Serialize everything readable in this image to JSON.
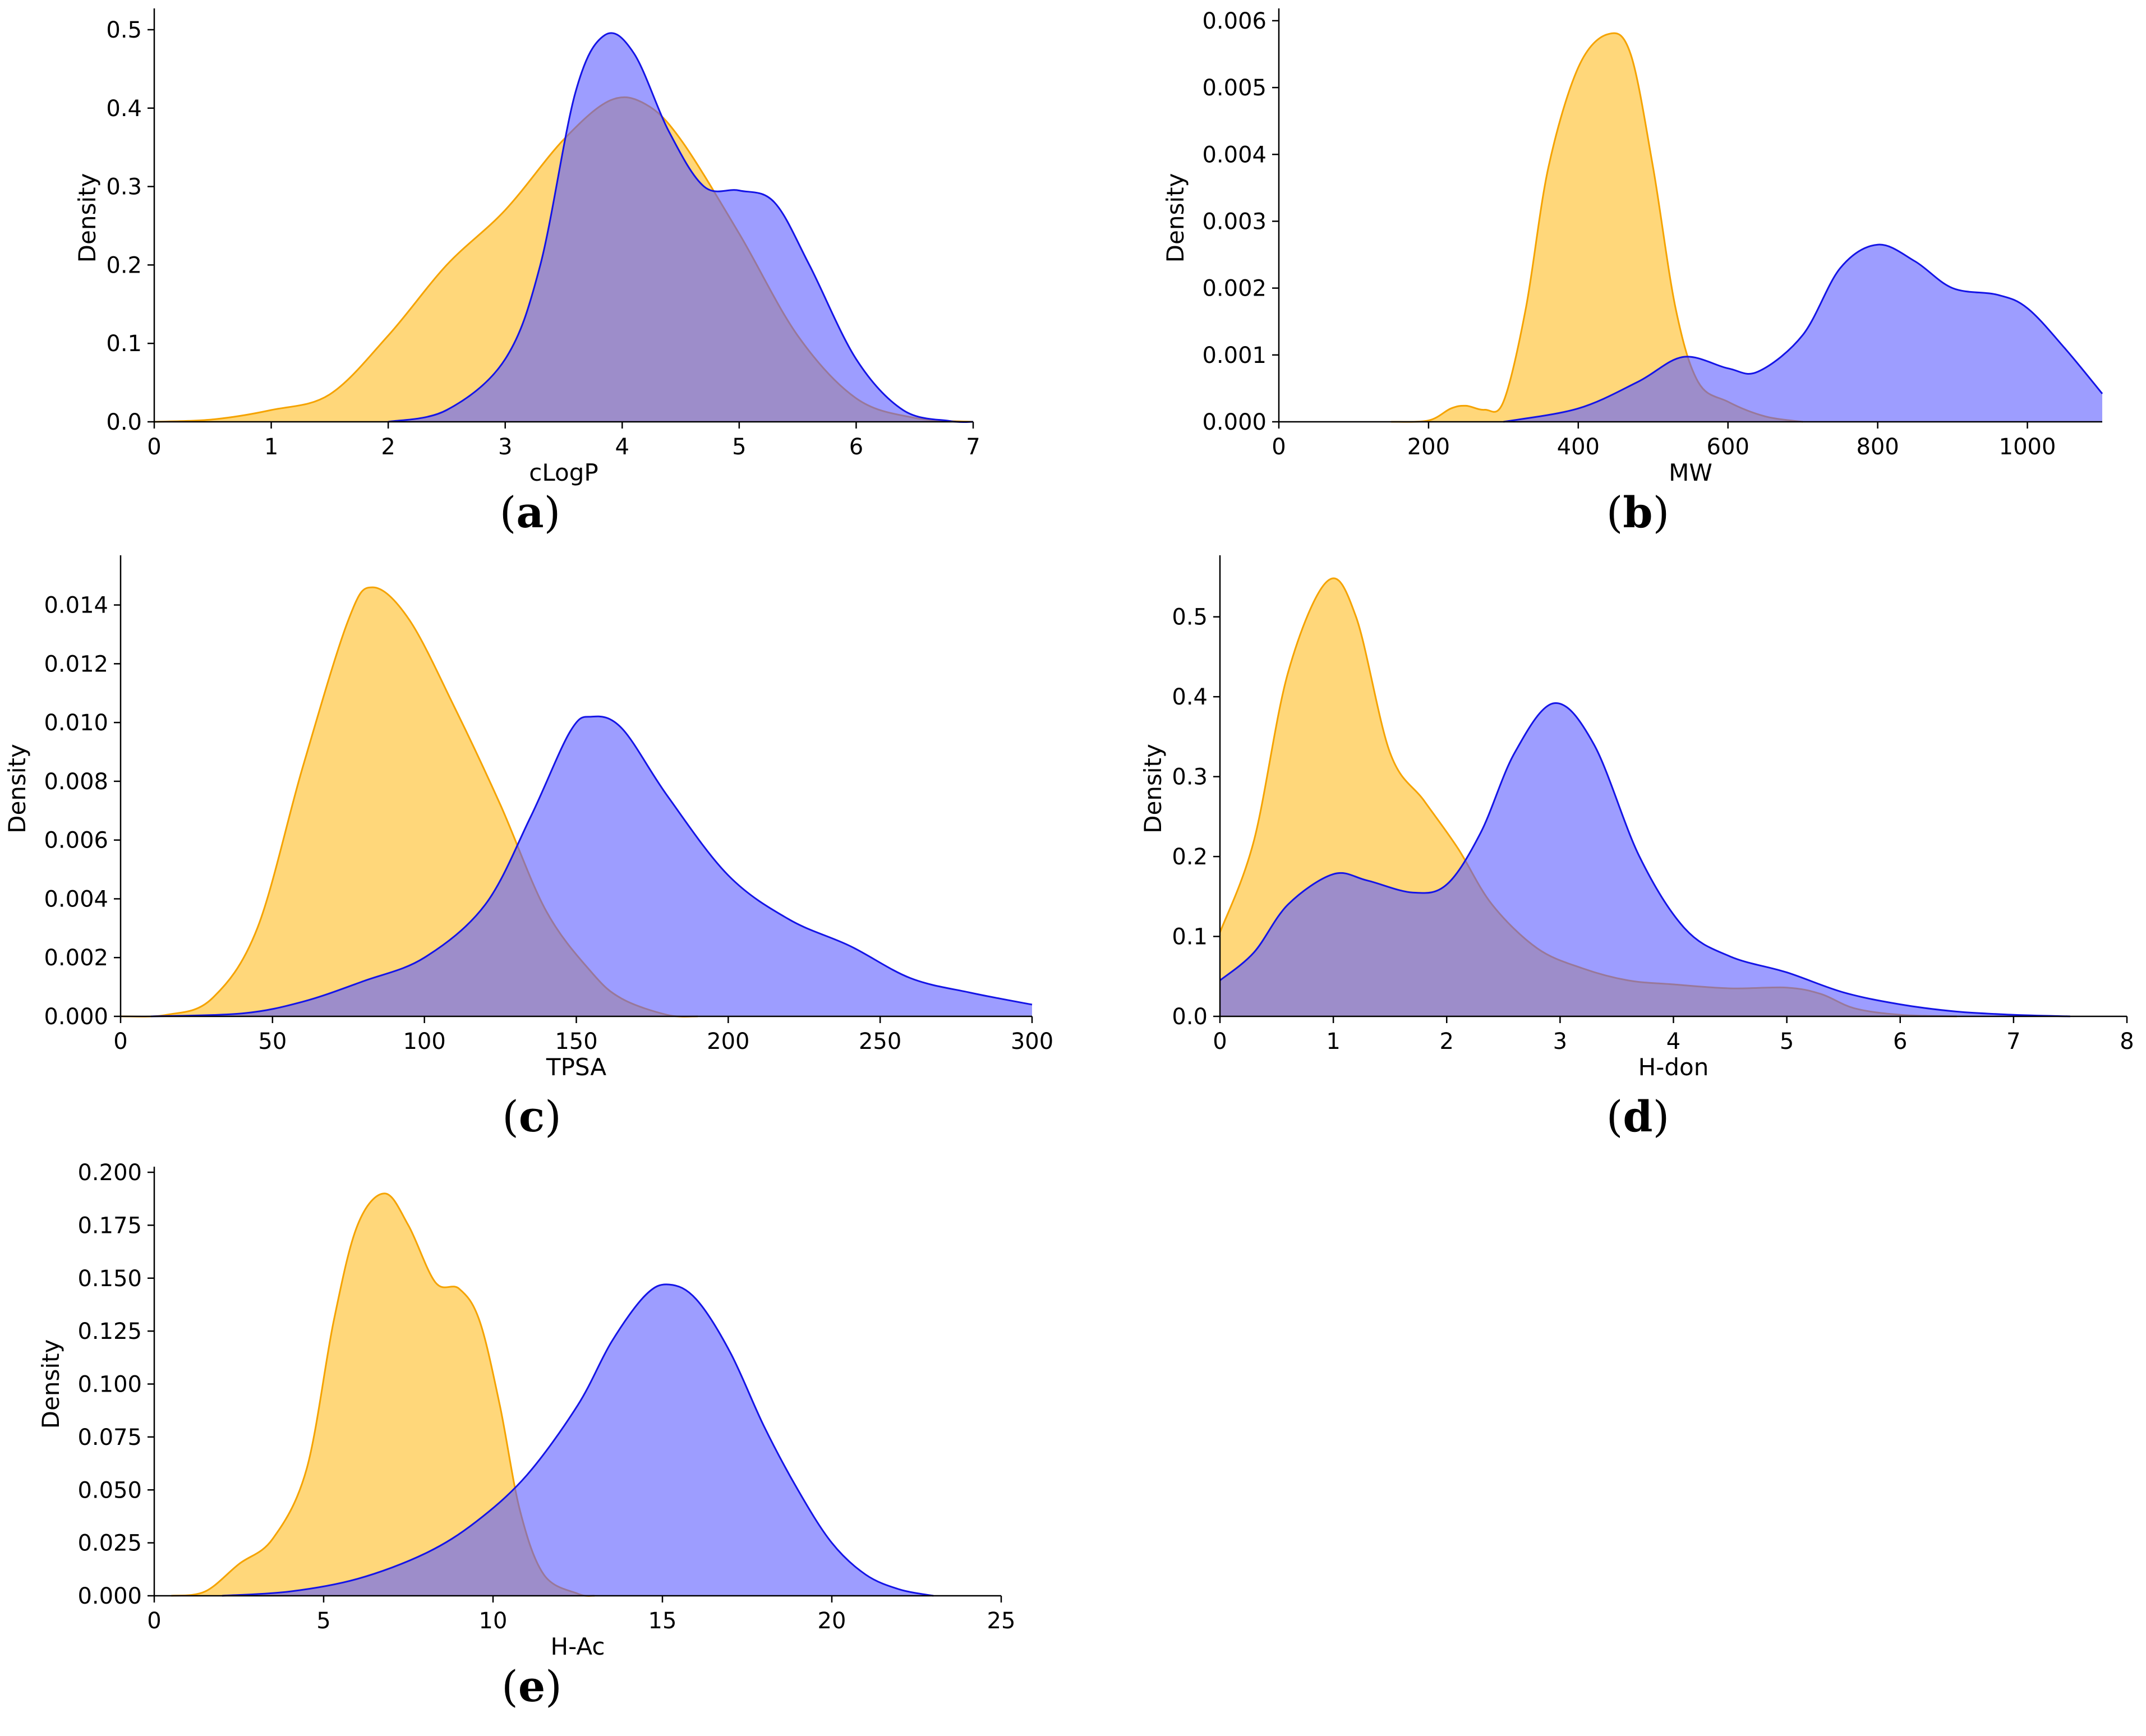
{
  "colors": {
    "orange_fill": "#FFC94D",
    "orange_line": "#F5A300",
    "blue_fill": "#5C5CFF",
    "blue_line": "#1414E6"
  },
  "chart_data": [
    {
      "type": "area",
      "panel": "a",
      "xlabel": "cLogP",
      "ylabel": "Density",
      "xlim": [
        0,
        7
      ],
      "ylim": [
        0,
        0.52
      ],
      "xticks": [
        "0",
        "1",
        "2",
        "3",
        "4",
        "5",
        "6",
        "7"
      ],
      "yticks": [
        "0.0",
        "0.1",
        "0.2",
        "0.3",
        "0.4",
        "0.5"
      ],
      "series": [
        {
          "name": "orange",
          "points": [
            [
              0,
              0
            ],
            [
              0.5,
              0.003
            ],
            [
              1,
              0.015
            ],
            [
              1.5,
              0.035
            ],
            [
              2,
              0.11
            ],
            [
              2.5,
              0.2
            ],
            [
              3,
              0.27
            ],
            [
              3.5,
              0.36
            ],
            [
              3.9,
              0.41
            ],
            [
              4.2,
              0.405
            ],
            [
              4.5,
              0.36
            ],
            [
              5,
              0.24
            ],
            [
              5.5,
              0.11
            ],
            [
              6,
              0.03
            ],
            [
              6.5,
              0.005
            ],
            [
              7,
              0
            ]
          ]
        },
        {
          "name": "blue",
          "points": [
            [
              2,
              0
            ],
            [
              2.5,
              0.015
            ],
            [
              3,
              0.08
            ],
            [
              3.3,
              0.2
            ],
            [
              3.6,
              0.42
            ],
            [
              3.85,
              0.493
            ],
            [
              4.1,
              0.47
            ],
            [
              4.4,
              0.37
            ],
            [
              4.7,
              0.3
            ],
            [
              5,
              0.295
            ],
            [
              5.3,
              0.28
            ],
            [
              5.6,
              0.2
            ],
            [
              6,
              0.08
            ],
            [
              6.4,
              0.015
            ],
            [
              6.8,
              0.001
            ],
            [
              7,
              0
            ]
          ]
        }
      ]
    },
    {
      "type": "area",
      "panel": "b",
      "xlabel": "MW",
      "ylabel": "Density",
      "xlim": [
        0,
        1100
      ],
      "ylim": [
        0,
        0.0061
      ],
      "xticks": [
        "0",
        "200",
        "400",
        "600",
        "800",
        "1000"
      ],
      "yticks": [
        "0.000",
        "0.001",
        "0.002",
        "0.003",
        "0.004",
        "0.005",
        "0.006"
      ],
      "series": [
        {
          "name": "orange",
          "points": [
            [
              150,
              0
            ],
            [
              200,
              2e-05
            ],
            [
              230,
              0.0002
            ],
            [
              250,
              0.00024
            ],
            [
              275,
              0.00018
            ],
            [
              300,
              0.0003
            ],
            [
              330,
              0.0017
            ],
            [
              360,
              0.0038
            ],
            [
              400,
              0.0053
            ],
            [
              440,
              0.0058
            ],
            [
              470,
              0.0055
            ],
            [
              500,
              0.0038
            ],
            [
              530,
              0.0017
            ],
            [
              560,
              0.0006
            ],
            [
              600,
              0.0003
            ],
            [
              650,
              8e-05
            ],
            [
              700,
              0
            ]
          ]
        },
        {
          "name": "blue",
          "points": [
            [
              300,
              0
            ],
            [
              400,
              0.0002
            ],
            [
              480,
              0.0006
            ],
            [
              540,
              0.00097
            ],
            [
              600,
              0.0008
            ],
            [
              640,
              0.00075
            ],
            [
              700,
              0.0013
            ],
            [
              750,
              0.0023
            ],
            [
              800,
              0.00265
            ],
            [
              850,
              0.0024
            ],
            [
              900,
              0.002
            ],
            [
              960,
              0.0019
            ],
            [
              1000,
              0.0017
            ],
            [
              1050,
              0.0011
            ],
            [
              1100,
              0.00042
            ]
          ]
        }
      ]
    },
    {
      "type": "area",
      "panel": "c",
      "xlabel": "TPSA",
      "ylabel": "Density",
      "xlim": [
        0,
        300
      ],
      "ylim": [
        0,
        0.0155
      ],
      "xticks": [
        "0",
        "50",
        "100",
        "150",
        "200",
        "250",
        "300"
      ],
      "yticks": [
        "0.000",
        "0.002",
        "0.004",
        "0.006",
        "0.008",
        "0.010",
        "0.012",
        "0.014"
      ],
      "series": [
        {
          "name": "orange",
          "points": [
            [
              0,
              0
            ],
            [
              15,
              5e-05
            ],
            [
              30,
              0.0006
            ],
            [
              45,
              0.003
            ],
            [
              60,
              0.0085
            ],
            [
              75,
              0.0135
            ],
            [
              83,
              0.0146
            ],
            [
              95,
              0.0135
            ],
            [
              110,
              0.0105
            ],
            [
              125,
              0.0072
            ],
            [
              140,
              0.0036
            ],
            [
              155,
              0.0015
            ],
            [
              165,
              0.0006
            ],
            [
              180,
              5e-05
            ],
            [
              190,
              0
            ]
          ]
        },
        {
          "name": "blue",
          "points": [
            [
              10,
              0
            ],
            [
              40,
              0.0001
            ],
            [
              60,
              0.0005
            ],
            [
              80,
              0.0012
            ],
            [
              100,
              0.002
            ],
            [
              120,
              0.0038
            ],
            [
              135,
              0.0068
            ],
            [
              148,
              0.0097
            ],
            [
              155,
              0.0102
            ],
            [
              165,
              0.0098
            ],
            [
              180,
              0.0075
            ],
            [
              200,
              0.0048
            ],
            [
              220,
              0.0033
            ],
            [
              240,
              0.0024
            ],
            [
              260,
              0.0013
            ],
            [
              280,
              0.0008
            ],
            [
              300,
              0.0004
            ]
          ]
        }
      ]
    },
    {
      "type": "area",
      "panel": "d",
      "xlabel": "H-don",
      "ylabel": "Density",
      "xlim": [
        0,
        8
      ],
      "ylim": [
        0,
        0.57
      ],
      "xticks": [
        "0",
        "1",
        "2",
        "3",
        "4",
        "5",
        "6",
        "7",
        "8"
      ],
      "yticks": [
        "0.0",
        "0.1",
        "0.2",
        "0.3",
        "0.4",
        "0.5"
      ],
      "series": [
        {
          "name": "orange",
          "points": [
            [
              0,
              0.105
            ],
            [
              0.3,
              0.22
            ],
            [
              0.6,
              0.43
            ],
            [
              0.95,
              0.545
            ],
            [
              1.2,
              0.5
            ],
            [
              1.5,
              0.33
            ],
            [
              1.8,
              0.27
            ],
            [
              2.1,
              0.21
            ],
            [
              2.4,
              0.14
            ],
            [
              2.8,
              0.085
            ],
            [
              3.2,
              0.06
            ],
            [
              3.6,
              0.045
            ],
            [
              4,
              0.04
            ],
            [
              4.5,
              0.035
            ],
            [
              5,
              0.036
            ],
            [
              5.3,
              0.028
            ],
            [
              5.6,
              0.01
            ],
            [
              6,
              0.002
            ],
            [
              6.5,
              0
            ]
          ]
        },
        {
          "name": "blue",
          "points": [
            [
              0,
              0.045
            ],
            [
              0.3,
              0.08
            ],
            [
              0.6,
              0.14
            ],
            [
              1,
              0.178
            ],
            [
              1.3,
              0.17
            ],
            [
              1.7,
              0.155
            ],
            [
              2,
              0.165
            ],
            [
              2.3,
              0.23
            ],
            [
              2.6,
              0.33
            ],
            [
              2.95,
              0.392
            ],
            [
              3.3,
              0.34
            ],
            [
              3.7,
              0.2
            ],
            [
              4.1,
              0.11
            ],
            [
              4.5,
              0.075
            ],
            [
              5,
              0.055
            ],
            [
              5.5,
              0.03
            ],
            [
              6,
              0.015
            ],
            [
              6.5,
              0.006
            ],
            [
              7,
              0.002
            ],
            [
              7.5,
              0
            ]
          ]
        }
      ]
    },
    {
      "type": "area",
      "panel": "e",
      "xlabel": "H-Ac",
      "ylabel": "Density",
      "xlim": [
        0,
        25
      ],
      "ylim": [
        0,
        0.2
      ],
      "xticks": [
        "0",
        "5",
        "10",
        "15",
        "20",
        "25"
      ],
      "yticks": [
        "0.000",
        "0.025",
        "0.050",
        "0.075",
        "0.100",
        "0.125",
        "0.150",
        "0.175",
        "0.200"
      ],
      "series": [
        {
          "name": "orange",
          "points": [
            [
              0.5,
              0
            ],
            [
              1.5,
              0.002
            ],
            [
              2.5,
              0.015
            ],
            [
              3.5,
              0.027
            ],
            [
              4.5,
              0.06
            ],
            [
              5.3,
              0.13
            ],
            [
              6,
              0.175
            ],
            [
              6.8,
              0.19
            ],
            [
              7.5,
              0.175
            ],
            [
              8.3,
              0.148
            ],
            [
              9,
              0.145
            ],
            [
              9.6,
              0.13
            ],
            [
              10.2,
              0.09
            ],
            [
              10.8,
              0.04
            ],
            [
              11.5,
              0.01
            ],
            [
              12.5,
              0.001
            ],
            [
              13,
              0
            ]
          ]
        },
        {
          "name": "blue",
          "points": [
            [
              2,
              0
            ],
            [
              4,
              0.002
            ],
            [
              6,
              0.008
            ],
            [
              8,
              0.02
            ],
            [
              9.5,
              0.035
            ],
            [
              11,
              0.057
            ],
            [
              12.5,
              0.09
            ],
            [
              13.5,
              0.12
            ],
            [
              14.5,
              0.142
            ],
            [
              15.2,
              0.147
            ],
            [
              16,
              0.14
            ],
            [
              17,
              0.115
            ],
            [
              18,
              0.08
            ],
            [
              19,
              0.05
            ],
            [
              20,
              0.025
            ],
            [
              21,
              0.01
            ],
            [
              22,
              0.003
            ],
            [
              23,
              0
            ]
          ]
        }
      ]
    }
  ],
  "panel_labels": [
    "(a)",
    "(b)",
    "(c)",
    "(d)",
    "(e)"
  ]
}
